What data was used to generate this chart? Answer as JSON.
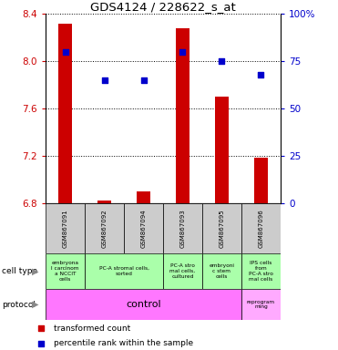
{
  "title": "GDS4124 / 228622_s_at",
  "samples": [
    "GSM867091",
    "GSM867092",
    "GSM867094",
    "GSM867093",
    "GSM867095",
    "GSM867096"
  ],
  "transformed_count": [
    8.32,
    6.82,
    6.9,
    8.28,
    7.7,
    7.18
  ],
  "percentile_rank": [
    80,
    65,
    65,
    80,
    75,
    68
  ],
  "ylim": [
    6.8,
    8.4
  ],
  "y2lim": [
    0,
    100
  ],
  "yticks": [
    6.8,
    7.2,
    7.6,
    8.0,
    8.4
  ],
  "y2ticks": [
    0,
    25,
    50,
    75,
    100
  ],
  "bar_color": "#cc0000",
  "dot_color": "#0000cc",
  "base_value": 6.8,
  "bar_width": 0.35,
  "cell_type_defs": [
    {
      "start": 0,
      "end": 0,
      "text": "embryona\nl carcinom\na NCCIT\ncells"
    },
    {
      "start": 1,
      "end": 2,
      "text": "PC-A stromal cells,\nsorted"
    },
    {
      "start": 3,
      "end": 3,
      "text": "PC-A stro\nmal cells,\ncultured"
    },
    {
      "start": 4,
      "end": 4,
      "text": "embryoni\nc stem\ncells"
    },
    {
      "start": 5,
      "end": 5,
      "text": "IPS cells\nfrom\nPC-A stro\nmal cells"
    }
  ],
  "cell_type_color": "#aaffaa",
  "protocol_control_color": "#ff77ff",
  "protocol_reprog_color": "#ffaaff",
  "gray_box_color": "#cccccc"
}
